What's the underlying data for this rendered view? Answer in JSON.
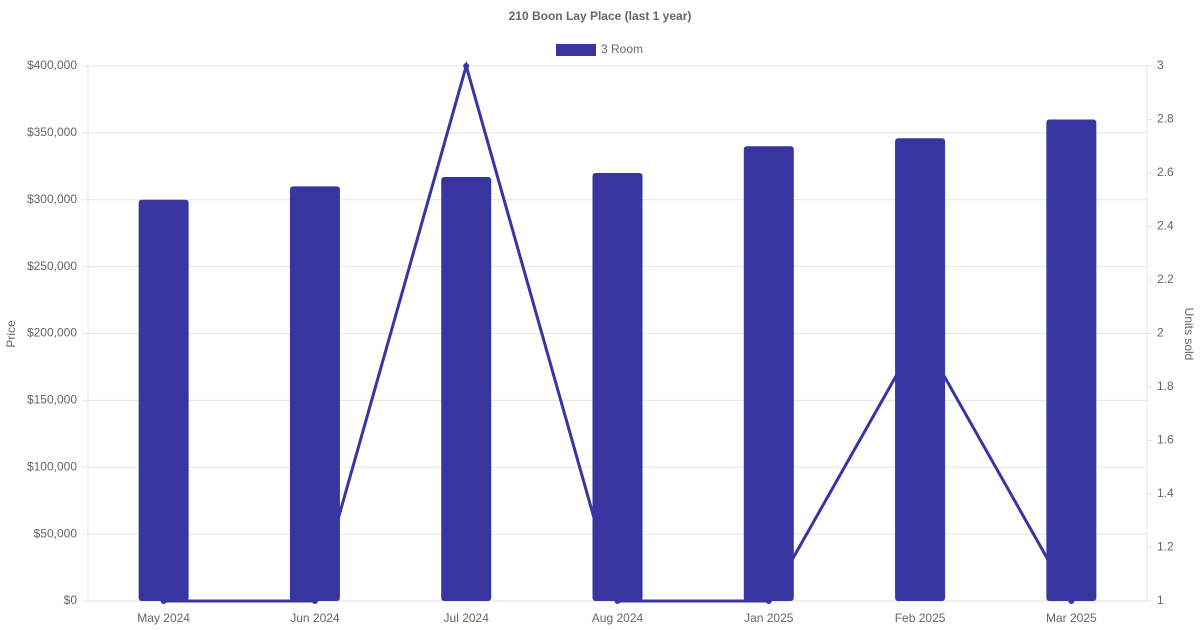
{
  "chart_data": {
    "type": "bar",
    "title": "210 Boon Lay Place (last 1 year)",
    "categories": [
      "May 2024",
      "Jun 2024",
      "Jul 2024",
      "Aug 2024",
      "Jan 2025",
      "Feb 2025",
      "Mar 2025"
    ],
    "series": [
      {
        "name": "3 Room",
        "type": "bar",
        "color": "#3935a0",
        "values": [
          300000,
          310000,
          317000,
          320000,
          340000,
          346000,
          360000
        ]
      },
      {
        "type": "line",
        "axis": "y2",
        "color": "#3935a0",
        "values": [
          1,
          1,
          3,
          1,
          1,
          2,
          1
        ]
      }
    ],
    "y_label": "Price",
    "y2_label": "Units sold",
    "ylim": [
      0,
      400000
    ],
    "yticks": [
      {
        "value": 0,
        "label": "$0"
      },
      {
        "value": 50000,
        "label": "$50,000"
      },
      {
        "value": 100000,
        "label": "$100,000"
      },
      {
        "value": 150000,
        "label": "$150,000"
      },
      {
        "value": 200000,
        "label": "$200,000"
      },
      {
        "value": 250000,
        "label": "$250,000"
      },
      {
        "value": 300000,
        "label": "$300,000"
      },
      {
        "value": 350000,
        "label": "$350,000"
      },
      {
        "value": 400000,
        "label": "$400,000"
      }
    ],
    "y2lim": [
      1,
      3
    ],
    "y2ticks": [
      1,
      1.2,
      1.4,
      1.6,
      1.8,
      2,
      2.2,
      2.4,
      2.6,
      2.8,
      3
    ],
    "grid": true,
    "legend": "top"
  }
}
